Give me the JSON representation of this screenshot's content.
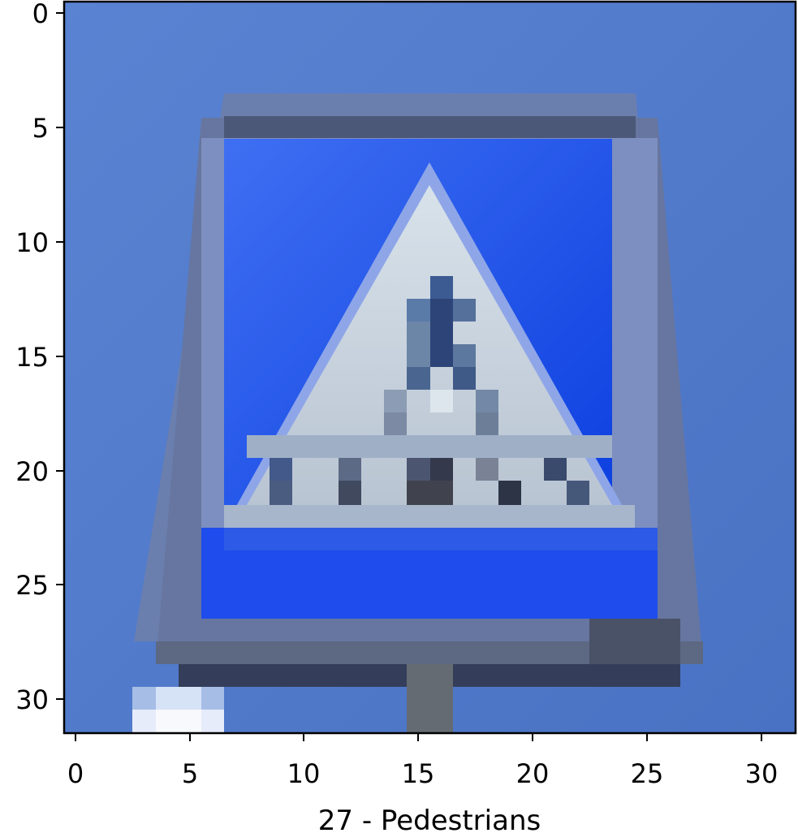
{
  "image": {
    "caption": "27 - Pedestrians",
    "grid_size": 32,
    "x_ticks": [
      "0",
      "5",
      "10",
      "15",
      "20",
      "25",
      "30"
    ],
    "y_ticks": [
      "0",
      "5",
      "10",
      "15",
      "20",
      "25",
      "30"
    ],
    "colors": {
      "background_blue": "#4f78c8",
      "sign_blue": "#1f4ff0",
      "triangle_white": "#d4dde2",
      "border_gray": "#5f6e8a",
      "frame_dark": "#3a4460",
      "pole_gray": "#6a6f74",
      "highlight_white": "#f2f4fb"
    }
  }
}
